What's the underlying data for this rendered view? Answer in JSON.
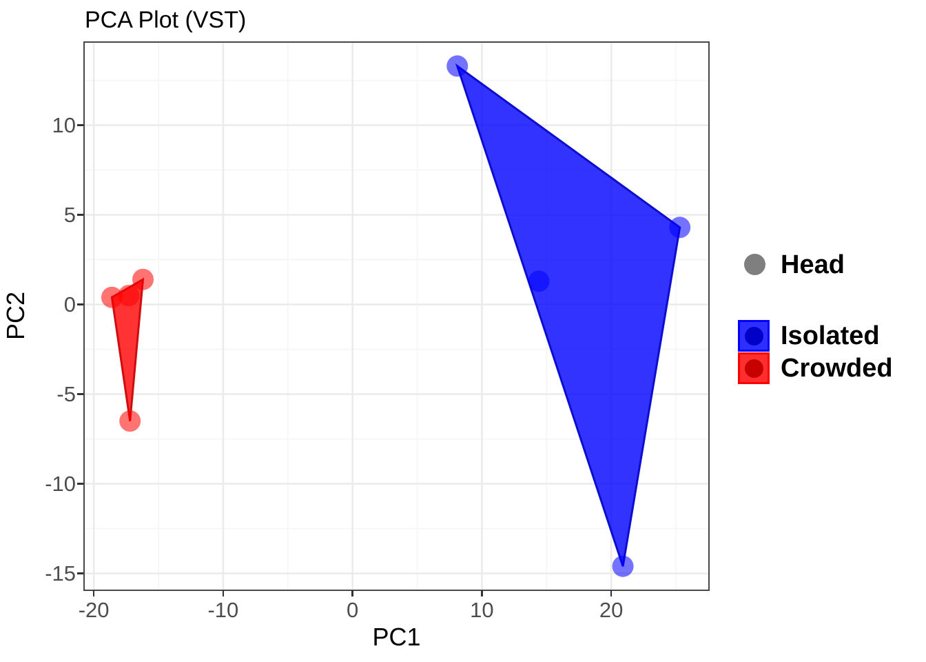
{
  "title": "PCA Plot (VST)",
  "axes": {
    "x": {
      "label": "PC1",
      "tick_labels": [
        "-20",
        "-10",
        "0",
        "10",
        "20"
      ],
      "tick_values": [
        -20,
        -10,
        0,
        10,
        20
      ],
      "minor_values": [
        -15,
        -5,
        5,
        15,
        25
      ],
      "range": [
        -20.7,
        27.5
      ]
    },
    "y": {
      "label": "PC2",
      "tick_labels": [
        "10",
        "5",
        "0",
        "-5",
        "-10",
        "-15"
      ],
      "tick_values": [
        10,
        5,
        0,
        -5,
        -10,
        -15
      ],
      "minor_values": [
        12.5,
        7.5,
        2.5,
        -2.5,
        -7.5,
        -12.5
      ],
      "range": [
        -15.9,
        14.6
      ]
    }
  },
  "legend": {
    "head": {
      "label": "Head",
      "color": "#7f7f7f"
    },
    "groups": [
      {
        "label": "Isolated",
        "color": "#0000ff",
        "stroke": "#0d0dcf"
      },
      {
        "label": "Crowded",
        "color": "#ff0000",
        "stroke": "#cf0d0d"
      }
    ]
  },
  "chart_data": {
    "type": "scatter",
    "title": "PCA Plot (VST)",
    "xlabel": "PC1",
    "ylabel": "PC2",
    "xlim": [
      -20.7,
      27.5
    ],
    "ylim": [
      -15.9,
      14.6
    ],
    "grid": "major+minor",
    "legend_position": "right",
    "point_opacity": 0.55,
    "hull_opacity": 0.8,
    "series": [
      {
        "name": "Isolated",
        "color": "#0000ff",
        "stroke": "#0d0dcf",
        "points": [
          {
            "x": 8.1,
            "y": 13.3
          },
          {
            "x": 14.4,
            "y": 1.3
          },
          {
            "x": 25.3,
            "y": 4.3
          },
          {
            "x": 20.9,
            "y": -14.6
          }
        ],
        "hull": [
          {
            "x": 8.1,
            "y": 13.3
          },
          {
            "x": 25.3,
            "y": 4.3
          },
          {
            "x": 20.9,
            "y": -14.6
          }
        ]
      },
      {
        "name": "Crowded",
        "color": "#ff0000",
        "stroke": "#cf0d0d",
        "points": [
          {
            "x": -18.6,
            "y": 0.4
          },
          {
            "x": -17.3,
            "y": 0.5
          },
          {
            "x": -16.2,
            "y": 1.4
          },
          {
            "x": -17.2,
            "y": -6.5
          }
        ],
        "hull": [
          {
            "x": -18.6,
            "y": 0.4
          },
          {
            "x": -16.2,
            "y": 1.4
          },
          {
            "x": -17.2,
            "y": -6.5
          }
        ]
      }
    ]
  },
  "style": {
    "grid_major": "#ebebeb",
    "grid_minor": "#f5f5f5",
    "panel_border": "#474747",
    "tick_color": "#333333",
    "tick_label_color": "#4d4d4d"
  }
}
